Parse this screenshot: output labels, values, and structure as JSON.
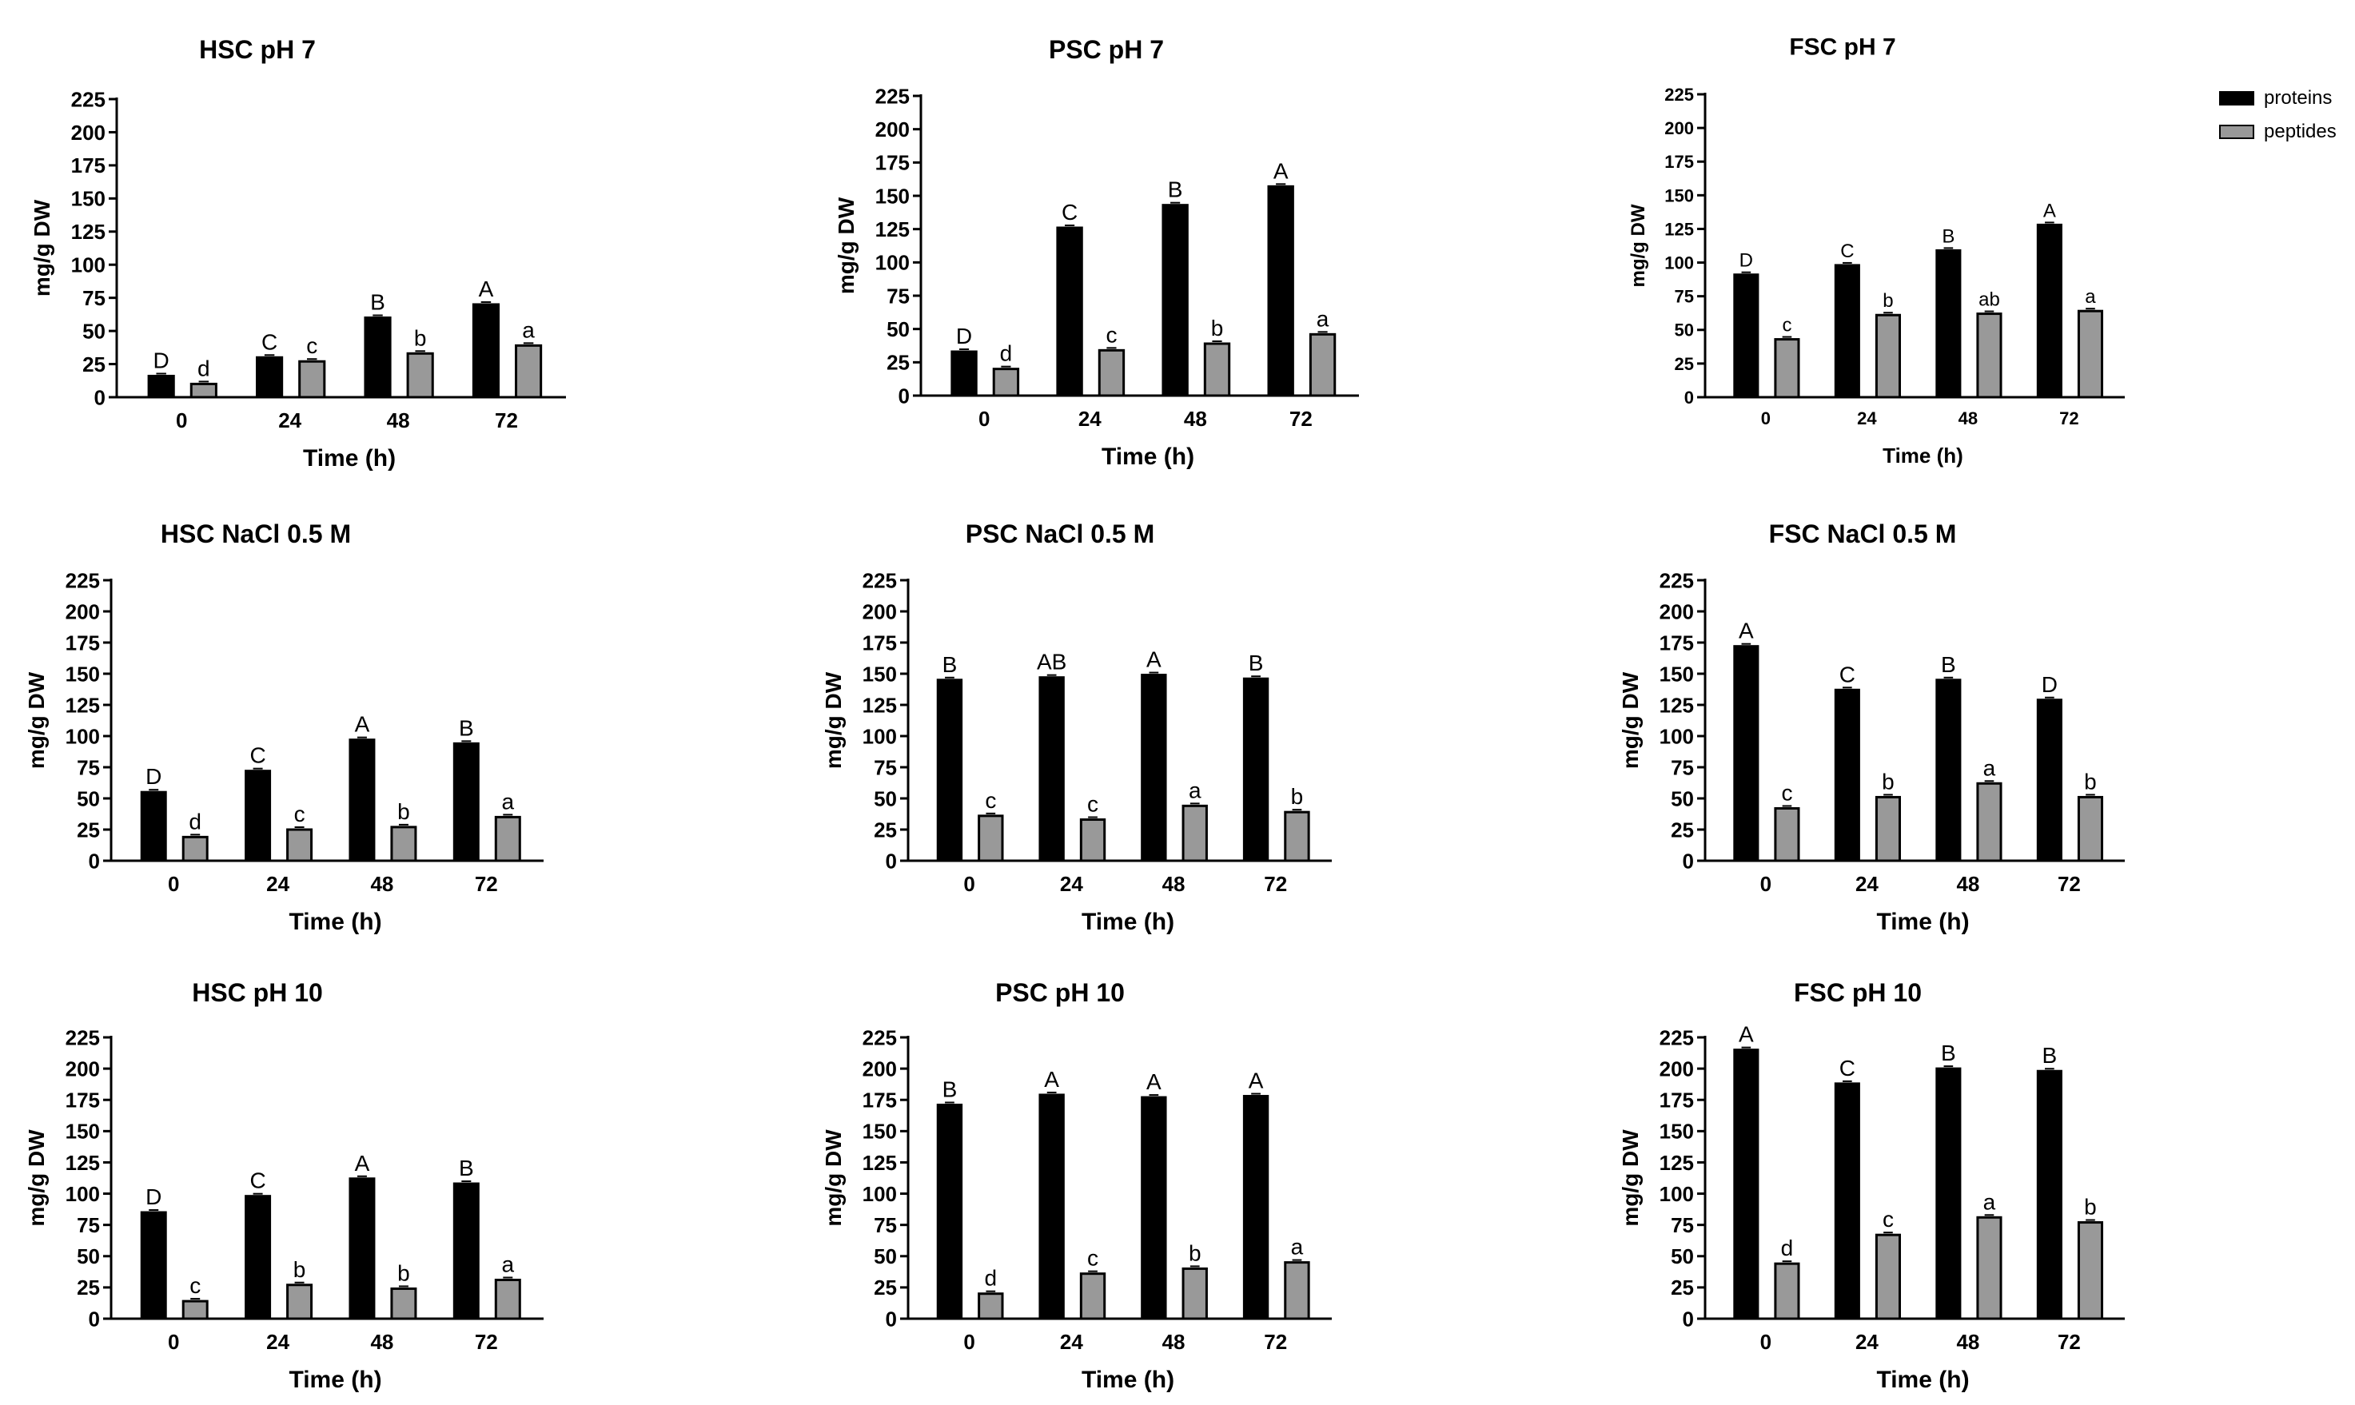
{
  "legend": {
    "proteins": {
      "label": "proteins",
      "color": "#000000"
    },
    "peptides": {
      "label": "peptides",
      "color": "#999999"
    }
  },
  "chart_data": [
    {
      "type": "bar",
      "title": "HSC  pH 7",
      "xlabel": "Time (h)",
      "ylabel": "mg/g DW",
      "categories": [
        "0",
        "24",
        "48",
        "72"
      ],
      "ylim": [
        0,
        225
      ],
      "yticks": [
        "0",
        "25",
        "50",
        "75",
        "100",
        "125",
        "150",
        "175",
        "200",
        "225"
      ],
      "series": [
        {
          "name": "proteins",
          "values": [
            16,
            30,
            60,
            70
          ],
          "letters": [
            "D",
            "C",
            "B",
            "A"
          ]
        },
        {
          "name": "peptides",
          "values": [
            10,
            27,
            33,
            39
          ],
          "letters": [
            "d",
            "c",
            "b",
            "a"
          ]
        }
      ]
    },
    {
      "type": "bar",
      "title": "PSC  pH 7",
      "xlabel": "Time (h)",
      "ylabel": "mg/g DW",
      "categories": [
        "0",
        "24",
        "48",
        "72"
      ],
      "ylim": [
        0,
        225
      ],
      "yticks": [
        "0",
        "25",
        "50",
        "75",
        "100",
        "125",
        "150",
        "175",
        "200",
        "225"
      ],
      "series": [
        {
          "name": "proteins",
          "values": [
            33,
            126,
            143,
            157
          ],
          "letters": [
            "D",
            "C",
            "B",
            "A"
          ]
        },
        {
          "name": "peptides",
          "values": [
            20,
            34,
            39,
            46
          ],
          "letters": [
            "d",
            "c",
            "b",
            "a"
          ]
        }
      ]
    },
    {
      "type": "bar",
      "title": "FSC  pH 7",
      "xlabel": "Time (h)",
      "ylabel": "mg/g DW",
      "categories": [
        "0",
        "24",
        "48",
        "72"
      ],
      "ylim": [
        0,
        225
      ],
      "yticks": [
        "0",
        "25",
        "50",
        "75",
        "100",
        "125",
        "150",
        "175",
        "200",
        "225"
      ],
      "series": [
        {
          "name": "proteins",
          "values": [
            91,
            98,
            109,
            128
          ],
          "letters": [
            "D",
            "C",
            "B",
            "A"
          ]
        },
        {
          "name": "peptides",
          "values": [
            43,
            61,
            62,
            64
          ],
          "letters": [
            "c",
            "b",
            "ab",
            "a"
          ]
        }
      ]
    },
    {
      "type": "bar",
      "title": "HSC  NaCl 0.5 M",
      "xlabel": "Time (h)",
      "ylabel": "mg/g DW",
      "categories": [
        "0",
        "24",
        "48",
        "72"
      ],
      "ylim": [
        0,
        225
      ],
      "yticks": [
        "0",
        "25",
        "50",
        "75",
        "100",
        "125",
        "150",
        "175",
        "200",
        "225"
      ],
      "series": [
        {
          "name": "proteins",
          "values": [
            55,
            72,
            97,
            94
          ],
          "letters": [
            "D",
            "C",
            "A",
            "B"
          ]
        },
        {
          "name": "peptides",
          "values": [
            19,
            25,
            27,
            35
          ],
          "letters": [
            "d",
            "c",
            "b",
            "a"
          ]
        }
      ]
    },
    {
      "type": "bar",
      "title": "PSC   NaCl 0.5 M",
      "xlabel": "Time (h)",
      "ylabel": "mg/g DW",
      "categories": [
        "0",
        "24",
        "48",
        "72"
      ],
      "ylim": [
        0,
        225
      ],
      "yticks": [
        "0",
        "25",
        "50",
        "75",
        "100",
        "125",
        "150",
        "175",
        "200",
        "225"
      ],
      "series": [
        {
          "name": "proteins",
          "values": [
            145,
            147,
            149,
            146
          ],
          "letters": [
            "B",
            "AB",
            "A",
            "B"
          ]
        },
        {
          "name": "peptides",
          "values": [
            36,
            33,
            44,
            39
          ],
          "letters": [
            "c",
            "c",
            "a",
            "b"
          ]
        }
      ]
    },
    {
      "type": "bar",
      "title": "FSC  NaCl 0.5 M",
      "xlabel": "Time (h)",
      "ylabel": "mg/g DW",
      "categories": [
        "0",
        "24",
        "48",
        "72"
      ],
      "ylim": [
        0,
        225
      ],
      "yticks": [
        "0",
        "25",
        "50",
        "75",
        "100",
        "125",
        "150",
        "175",
        "200",
        "225"
      ],
      "series": [
        {
          "name": "proteins",
          "values": [
            172,
            137,
            145,
            129
          ],
          "letters": [
            "A",
            "C",
            "B",
            "D"
          ]
        },
        {
          "name": "peptides",
          "values": [
            42,
            51,
            62,
            51
          ],
          "letters": [
            "c",
            "b",
            "a",
            "b"
          ]
        }
      ]
    },
    {
      "type": "bar",
      "title": "HSC  pH 10",
      "xlabel": "Time (h)",
      "ylabel": "mg/g DW",
      "categories": [
        "0",
        "24",
        "48",
        "72"
      ],
      "ylim": [
        0,
        225
      ],
      "yticks": [
        "0",
        "25",
        "50",
        "75",
        "100",
        "125",
        "150",
        "175",
        "200",
        "225"
      ],
      "series": [
        {
          "name": "proteins",
          "values": [
            85,
            98,
            112,
            108
          ],
          "letters": [
            "D",
            "C",
            "A",
            "B"
          ]
        },
        {
          "name": "peptides",
          "values": [
            14,
            27,
            24,
            31
          ],
          "letters": [
            "c",
            "b",
            "b",
            "a"
          ]
        }
      ]
    },
    {
      "type": "bar",
      "title": "PSC  pH 10",
      "xlabel": "Time (h)",
      "ylabel": "mg/g DW",
      "categories": [
        "0",
        "24",
        "48",
        "72"
      ],
      "ylim": [
        0,
        225
      ],
      "yticks": [
        "0",
        "25",
        "50",
        "75",
        "100",
        "125",
        "150",
        "175",
        "200",
        "225"
      ],
      "series": [
        {
          "name": "proteins",
          "values": [
            171,
            179,
            177,
            178
          ],
          "letters": [
            "B",
            "A",
            "A",
            "A"
          ]
        },
        {
          "name": "peptides",
          "values": [
            20,
            36,
            40,
            45
          ],
          "letters": [
            "d",
            "c",
            "b",
            "a"
          ]
        }
      ]
    },
    {
      "type": "bar",
      "title": "FSC  pH 10",
      "xlabel": "Time (h)",
      "ylabel": "mg/g DW",
      "categories": [
        "0",
        "24",
        "48",
        "72"
      ],
      "ylim": [
        0,
        225
      ],
      "yticks": [
        "0",
        "25",
        "50",
        "75",
        "100",
        "125",
        "150",
        "175",
        "200",
        "225"
      ],
      "series": [
        {
          "name": "proteins",
          "values": [
            215,
            188,
            200,
            198
          ],
          "letters": [
            "A",
            "C",
            "B",
            "B"
          ]
        },
        {
          "name": "peptides",
          "values": [
            44,
            67,
            81,
            77
          ],
          "letters": [
            "d",
            "c",
            "a",
            "b"
          ]
        }
      ]
    }
  ]
}
